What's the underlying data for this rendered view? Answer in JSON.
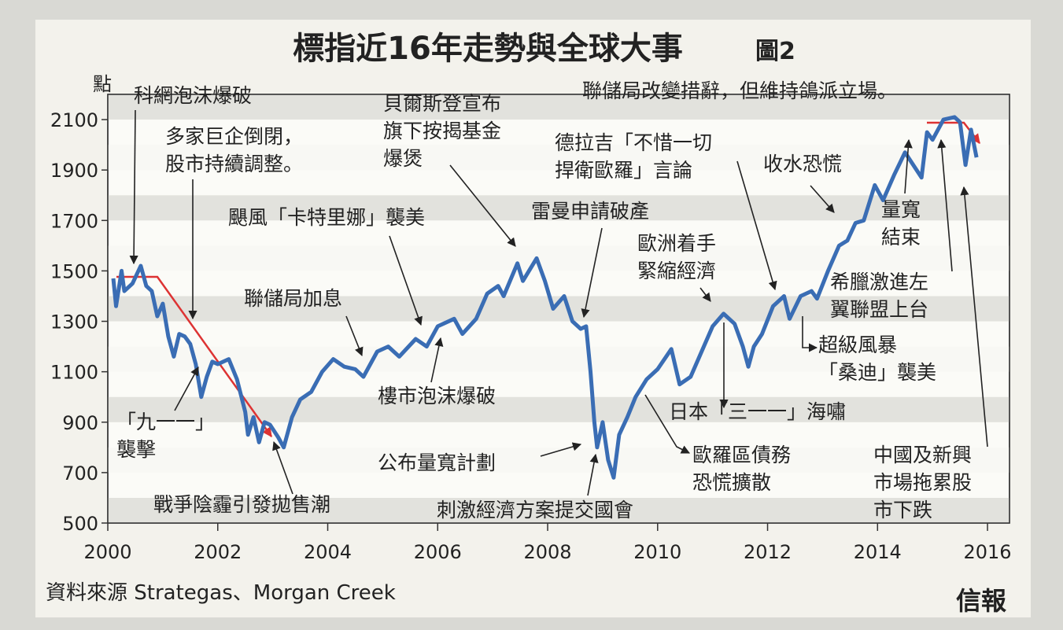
{
  "chart_data": {
    "type": "line",
    "title": "標指近16年走勢與全球大事",
    "figure_label": "圖2",
    "y_label": "點",
    "source": "資料來源 Strategas、Morgan Creek",
    "publisher": "信報",
    "color": "#3a6db4",
    "grid": true,
    "xlim": [
      2000,
      2016.4
    ],
    "xticks": [
      2000,
      2002,
      2004,
      2006,
      2008,
      2010,
      2012,
      2014,
      2016
    ],
    "ylim": [
      500,
      2200
    ],
    "yticks": [
      500,
      700,
      900,
      1100,
      1300,
      1500,
      1700,
      1900,
      2100
    ],
    "x": [
      2000.1,
      2000.15,
      2000.25,
      2000.3,
      2000.45,
      2000.6,
      2000.7,
      2000.8,
      2000.9,
      2001.0,
      2001.1,
      2001.2,
      2001.3,
      2001.4,
      2001.5,
      2001.6,
      2001.7,
      2001.8,
      2001.9,
      2002.0,
      2002.2,
      2002.35,
      2002.5,
      2002.55,
      2002.65,
      2002.75,
      2002.85,
      2002.95,
      2003.1,
      2003.2,
      2003.35,
      2003.5,
      2003.7,
      2003.9,
      2004.1,
      2004.3,
      2004.5,
      2004.65,
      2004.9,
      2005.1,
      2005.3,
      2005.6,
      2005.8,
      2006.0,
      2006.3,
      2006.45,
      2006.7,
      2006.9,
      2007.1,
      2007.2,
      2007.45,
      2007.55,
      2007.8,
      2007.95,
      2008.1,
      2008.3,
      2008.45,
      2008.6,
      2008.7,
      2008.78,
      2008.85,
      2008.9,
      2009.0,
      2009.1,
      2009.2,
      2009.3,
      2009.45,
      2009.6,
      2009.8,
      2010.0,
      2010.25,
      2010.4,
      2010.6,
      2010.8,
      2011.0,
      2011.2,
      2011.4,
      2011.55,
      2011.65,
      2011.75,
      2011.9,
      2012.1,
      2012.3,
      2012.4,
      2012.6,
      2012.8,
      2012.9,
      2013.1,
      2013.3,
      2013.45,
      2013.6,
      2013.75,
      2013.95,
      2014.1,
      2014.3,
      2014.5,
      2014.65,
      2014.8,
      2014.9,
      2015.0,
      2015.2,
      2015.4,
      2015.5,
      2015.6,
      2015.7,
      2015.8
    ],
    "values": [
      1470,
      1360,
      1500,
      1420,
      1450,
      1520,
      1440,
      1420,
      1320,
      1370,
      1240,
      1160,
      1250,
      1240,
      1210,
      1130,
      1000,
      1080,
      1140,
      1130,
      1150,
      1070,
      940,
      850,
      920,
      820,
      900,
      890,
      840,
      800,
      920,
      990,
      1020,
      1100,
      1150,
      1120,
      1110,
      1080,
      1180,
      1200,
      1160,
      1230,
      1200,
      1280,
      1310,
      1250,
      1310,
      1410,
      1440,
      1400,
      1530,
      1460,
      1550,
      1460,
      1350,
      1400,
      1300,
      1270,
      1280,
      1100,
      900,
      800,
      900,
      750,
      680,
      850,
      920,
      1000,
      1070,
      1110,
      1190,
      1050,
      1080,
      1180,
      1280,
      1330,
      1290,
      1200,
      1120,
      1200,
      1250,
      1360,
      1400,
      1310,
      1400,
      1420,
      1390,
      1500,
      1600,
      1620,
      1690,
      1700,
      1840,
      1780,
      1880,
      1970,
      1920,
      1870,
      2050,
      2020,
      2100,
      2110,
      2090,
      1920,
      2060,
      1950
    ],
    "annotations": [
      [
        "科網泡沫爆破"
      ],
      [
        "多家巨企倒閉，",
        "股市持續調整。"
      ],
      [
        "「九一一」",
        "襲擊"
      ],
      [
        "戰爭陰霾引發拋售潮"
      ],
      [
        "颶風「卡特里娜」襲美"
      ],
      [
        "聯儲局加息"
      ],
      [
        "樓市泡沫爆破"
      ],
      [
        "貝爾斯登宣布",
        "旗下按揭基金",
        "爆煲"
      ],
      [
        "雷曼申請破產"
      ],
      [
        "公布量寬計劃"
      ],
      [
        "刺激經濟方案提交國會"
      ],
      [
        "歐洲着手",
        "緊縮經濟"
      ],
      [
        "德拉吉「不惜一切",
        "捍衛歐羅」言論"
      ],
      [
        "收水恐慌"
      ],
      [
        "聯儲局改變措辭，但維持鴿派立場。"
      ],
      [
        "量寬",
        "結束"
      ],
      [
        "希臘激進左",
        "翼聯盟上台"
      ],
      [
        "超級風暴",
        "「桑迪」襲美"
      ],
      [
        "日本「三一一」海嘯"
      ],
      [
        "歐羅區債務",
        "恐慌擴散"
      ],
      [
        "中國及新興",
        "市場拖累股",
        "市下跌"
      ]
    ]
  }
}
